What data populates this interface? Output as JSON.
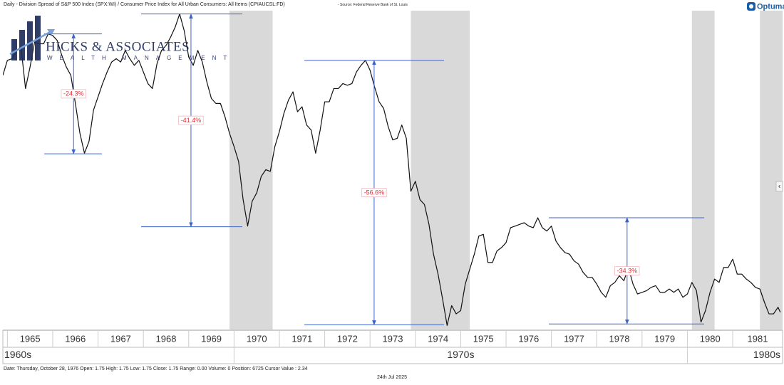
{
  "header": {
    "title": "Daily - Division Spread of S&P 500 Index (SPX:WI) / Consumer Price Index for All Urban Consumers: All Items (CPIAUCSL:FD)",
    "source": " - Source: Federal Reserve Bank of St. Louis",
    "brand": "Optuma"
  },
  "watermark": {
    "title": "HICKS & ASSOCIATES",
    "subtitle": "WEALTH MANAGEMENT"
  },
  "footer": {
    "status": "Date: Thursday, October 28, 1976 Open: 1.75 High: 1.75 Low: 1.75 Close: 1.75 Range: 0.00 Volume: 0 Position: 6725 Cursor Value : 2.34",
    "date": "24th Jul 2025"
  },
  "side_button": "‹",
  "chart_data": {
    "type": "line",
    "color": "#111111",
    "x": [
      1964.9,
      1965.0,
      1965.1,
      1965.2,
      1965.3,
      1965.4,
      1965.5,
      1965.6,
      1965.7,
      1965.8,
      1965.9,
      1966.0,
      1966.1,
      1966.2,
      1966.3,
      1966.4,
      1966.5,
      1966.6,
      1966.7,
      1966.8,
      1966.9,
      1967.0,
      1967.1,
      1967.2,
      1967.3,
      1967.4,
      1967.5,
      1967.6,
      1967.7,
      1967.8,
      1967.9,
      1968.0,
      1968.1,
      1968.2,
      1968.3,
      1968.4,
      1968.5,
      1968.6,
      1968.7,
      1968.8,
      1968.9,
      1969.0,
      1969.1,
      1969.2,
      1969.3,
      1969.4,
      1969.5,
      1969.6,
      1969.7,
      1969.8,
      1969.9,
      1970.0,
      1970.1,
      1970.2,
      1970.3,
      1970.4,
      1970.5,
      1970.6,
      1970.7,
      1970.8,
      1970.9,
      1971.0,
      1971.1,
      1971.2,
      1971.3,
      1971.4,
      1971.5,
      1971.6,
      1971.7,
      1971.8,
      1971.9,
      1972.0,
      1972.1,
      1972.2,
      1972.3,
      1972.4,
      1972.5,
      1972.6,
      1972.7,
      1972.8,
      1972.9,
      1973.0,
      1973.1,
      1973.2,
      1973.3,
      1973.4,
      1973.5,
      1973.6,
      1973.7,
      1973.8,
      1973.9,
      1974.0,
      1974.1,
      1974.2,
      1974.3,
      1974.4,
      1974.5,
      1974.6,
      1974.7,
      1974.8,
      1974.9,
      1975.0,
      1975.1,
      1975.2,
      1975.3,
      1975.4,
      1975.5,
      1975.6,
      1975.7,
      1975.8,
      1975.9,
      1976.0,
      1976.1,
      1976.2,
      1976.3,
      1976.4,
      1976.5,
      1976.6,
      1976.7,
      1976.8,
      1976.9,
      1977.0,
      1977.1,
      1977.2,
      1977.3,
      1977.4,
      1977.5,
      1977.6,
      1977.7,
      1977.8,
      1977.9,
      1978.0,
      1978.1,
      1978.2,
      1978.3,
      1978.4,
      1978.5,
      1978.6,
      1978.7,
      1978.8,
      1978.9,
      1979.0,
      1979.1,
      1979.2,
      1979.3,
      1979.4,
      1979.5,
      1979.6,
      1979.7,
      1979.8,
      1979.9,
      1980.0,
      1980.1,
      1980.2,
      1980.3,
      1980.4,
      1980.5,
      1980.6,
      1980.7,
      1980.8,
      1980.9,
      1981.0,
      1981.1,
      1981.2,
      1981.3,
      1981.4,
      1981.5,
      1981.6,
      1981.7,
      1981.8,
      1981.9,
      1982.0,
      1982.05
    ],
    "values": [
      2.73,
      2.82,
      2.83,
      2.88,
      2.9,
      2.65,
      2.78,
      2.93,
      2.92,
      2.92,
      2.98,
      2.97,
      2.94,
      2.85,
      2.78,
      2.73,
      2.56,
      2.38,
      2.26,
      2.33,
      2.52,
      2.6,
      2.68,
      2.75,
      2.81,
      2.83,
      2.81,
      2.88,
      2.83,
      2.79,
      2.82,
      2.75,
      2.68,
      2.65,
      2.8,
      2.88,
      2.91,
      2.96,
      3.02,
      3.1,
      3.0,
      2.84,
      2.79,
      2.88,
      2.81,
      2.69,
      2.59,
      2.56,
      2.56,
      2.48,
      2.38,
      2.3,
      2.21,
      1.98,
      1.82,
      1.97,
      2.02,
      2.12,
      2.16,
      2.15,
      2.3,
      2.39,
      2.5,
      2.58,
      2.63,
      2.51,
      2.54,
      2.43,
      2.4,
      2.26,
      2.4,
      2.57,
      2.57,
      2.65,
      2.65,
      2.68,
      2.67,
      2.68,
      2.75,
      2.79,
      2.82,
      2.76,
      2.66,
      2.57,
      2.53,
      2.42,
      2.34,
      2.35,
      2.43,
      2.35,
      2.03,
      2.09,
      1.98,
      1.95,
      1.83,
      1.65,
      1.53,
      1.38,
      1.22,
      1.34,
      1.29,
      1.31,
      1.47,
      1.56,
      1.65,
      1.76,
      1.77,
      1.6,
      1.6,
      1.67,
      1.69,
      1.72,
      1.81,
      1.82,
      1.83,
      1.84,
      1.82,
      1.81,
      1.87,
      1.81,
      1.79,
      1.82,
      1.73,
      1.69,
      1.66,
      1.65,
      1.61,
      1.59,
      1.54,
      1.51,
      1.51,
      1.47,
      1.42,
      1.39,
      1.46,
      1.48,
      1.52,
      1.49,
      1.57,
      1.47,
      1.41,
      1.42,
      1.43,
      1.45,
      1.46,
      1.42,
      1.42,
      1.44,
      1.42,
      1.44,
      1.39,
      1.41,
      1.48,
      1.43,
      1.24,
      1.31,
      1.42,
      1.5,
      1.48,
      1.57,
      1.57,
      1.62,
      1.53,
      1.53,
      1.5,
      1.48,
      1.45,
      1.44,
      1.36,
      1.29,
      1.29,
      1.33,
      1.3
    ],
    "xlim": [
      1964.9,
      1982.1
    ],
    "ylim": [
      1.2,
      3.12
    ],
    "xticks": [
      1965,
      1966,
      1967,
      1968,
      1969,
      1970,
      1971,
      1972,
      1973,
      1974,
      1975,
      1976,
      1977,
      1978,
      1979,
      1980,
      1981
    ],
    "decades": [
      "1960s",
      "1970s",
      "1980s"
    ],
    "decade_ticks": [
      1970,
      1980
    ],
    "recessions": [
      [
        1969.9,
        1970.85
      ],
      [
        1973.9,
        1975.2
      ],
      [
        1980.1,
        1980.6
      ],
      [
        1981.6,
        1982.9
      ]
    ],
    "recession_color": "#d9d9d9",
    "annotation_color": "#3d63c9",
    "drawdowns": [
      {
        "label": "-24.3%",
        "peak": 2.98,
        "trough": 2.256,
        "x": 1966.46
      },
      {
        "label": "-41.4%",
        "peak": 3.1,
        "trough": 1.816,
        "x": 1969.05
      },
      {
        "label": "-56.6%",
        "peak": 2.82,
        "trough": 1.224,
        "x": 1973.09
      },
      {
        "label": "-34.3%",
        "peak": 1.87,
        "trough": 1.229,
        "x": 1978.67
      }
    ]
  }
}
